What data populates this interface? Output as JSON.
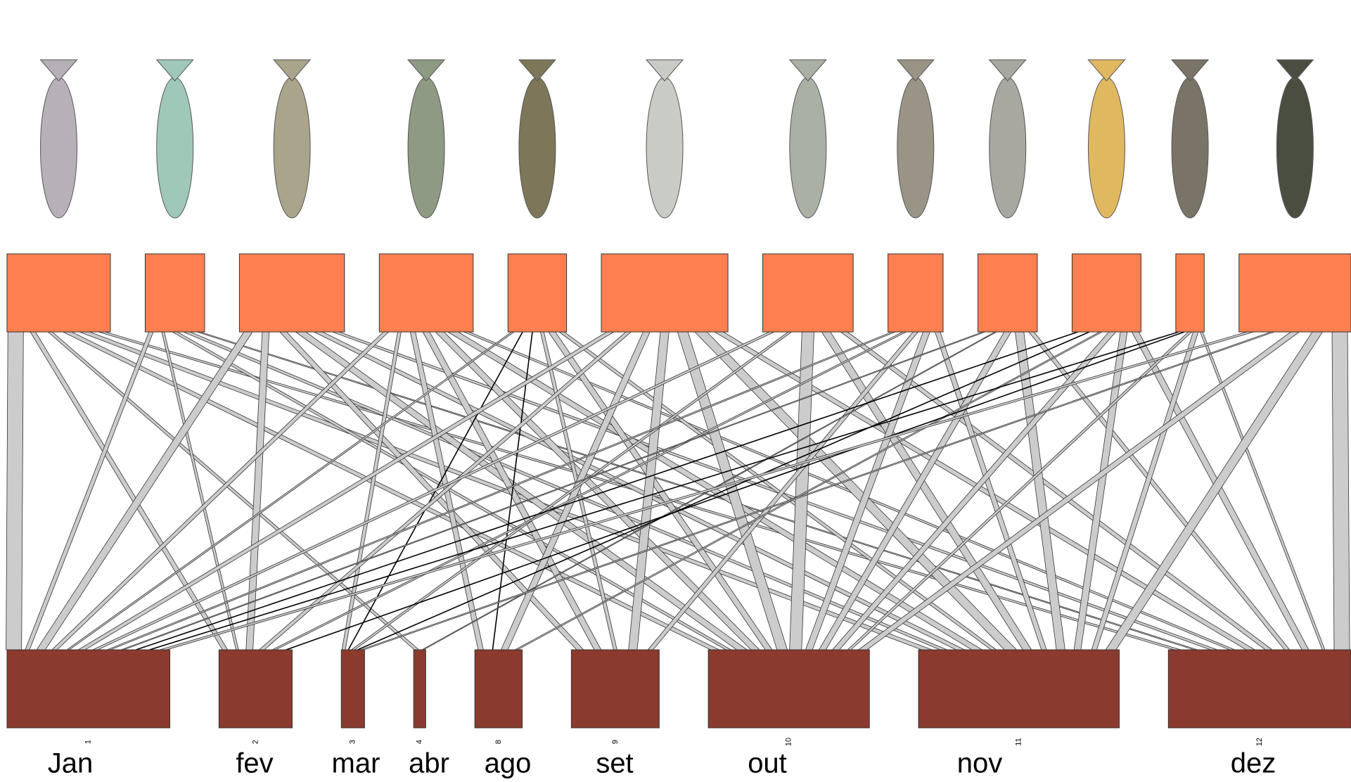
{
  "chart_data": {
    "type": "bipartite",
    "higher": {
      "values": [
        120,
        69,
        122,
        109,
        68,
        147,
        105,
        64,
        69,
        80,
        33,
        130
      ],
      "color": "#ff7f50"
    },
    "lower": {
      "categories": [
        "Jan",
        "fev",
        "mar",
        "abr",
        "ago",
        "set",
        "out",
        "nov",
        "dez"
      ],
      "codes": [
        1,
        2,
        3,
        4,
        8,
        9,
        10,
        11,
        12
      ],
      "values": [
        189,
        85,
        27,
        14,
        55,
        102,
        187,
        233,
        212
      ],
      "color": "#8b3a2f"
    },
    "link_color": "#cccccc",
    "links": [
      [
        0,
        0,
        18
      ],
      [
        0,
        1,
        6
      ],
      [
        0,
        3,
        5
      ],
      [
        0,
        6,
        10
      ],
      [
        0,
        7,
        12
      ],
      [
        0,
        8,
        8
      ],
      [
        1,
        0,
        5
      ],
      [
        1,
        1,
        3
      ],
      [
        1,
        6,
        6
      ],
      [
        1,
        7,
        8
      ],
      [
        1,
        8,
        4
      ],
      [
        2,
        0,
        10
      ],
      [
        2,
        1,
        8
      ],
      [
        2,
        5,
        8
      ],
      [
        2,
        6,
        12
      ],
      [
        2,
        7,
        10
      ],
      [
        2,
        8,
        8
      ],
      [
        3,
        0,
        6
      ],
      [
        3,
        2,
        4
      ],
      [
        3,
        4,
        6
      ],
      [
        3,
        5,
        8
      ],
      [
        3,
        6,
        10
      ],
      [
        3,
        7,
        12
      ],
      [
        3,
        8,
        6
      ],
      [
        4,
        0,
        3
      ],
      [
        4,
        2,
        1
      ],
      [
        4,
        4,
        1
      ],
      [
        4,
        5,
        4
      ],
      [
        4,
        6,
        8
      ],
      [
        4,
        7,
        6
      ],
      [
        5,
        0,
        8
      ],
      [
        5,
        1,
        6
      ],
      [
        5,
        4,
        8
      ],
      [
        5,
        5,
        10
      ],
      [
        5,
        6,
        12
      ],
      [
        5,
        7,
        14
      ],
      [
        5,
        8,
        10
      ],
      [
        6,
        0,
        6
      ],
      [
        6,
        2,
        4
      ],
      [
        6,
        6,
        14
      ],
      [
        6,
        7,
        10
      ],
      [
        6,
        8,
        8
      ],
      [
        7,
        0,
        4
      ],
      [
        7,
        1,
        4
      ],
      [
        7,
        5,
        6
      ],
      [
        7,
        6,
        8
      ],
      [
        7,
        7,
        6
      ],
      [
        8,
        0,
        3
      ],
      [
        8,
        3,
        2
      ],
      [
        8,
        6,
        8
      ],
      [
        8,
        7,
        10
      ],
      [
        8,
        8,
        6
      ],
      [
        9,
        0,
        1
      ],
      [
        9,
        2,
        1
      ],
      [
        9,
        4,
        3
      ],
      [
        9,
        6,
        8
      ],
      [
        9,
        7,
        8
      ],
      [
        9,
        8,
        8
      ],
      [
        10,
        0,
        1
      ],
      [
        10,
        1,
        1
      ],
      [
        10,
        6,
        4
      ],
      [
        10,
        7,
        6
      ],
      [
        10,
        8,
        3
      ],
      [
        11,
        0,
        8
      ],
      [
        11,
        2,
        4
      ],
      [
        11,
        6,
        10
      ],
      [
        11,
        7,
        12
      ],
      [
        11,
        8,
        18
      ]
    ]
  }
}
